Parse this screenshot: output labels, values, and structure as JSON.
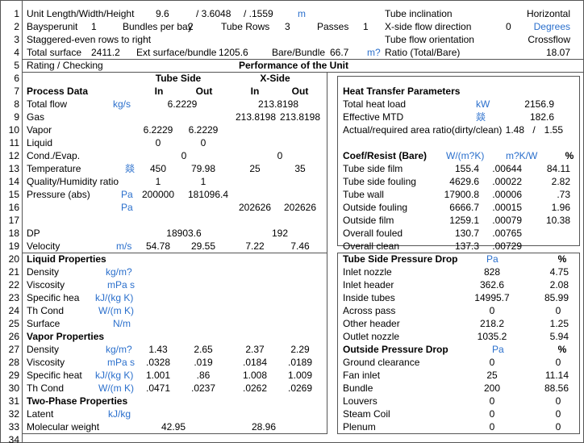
{
  "row_numbers": [
    "1",
    "2",
    "3",
    "4",
    "5",
    "6",
    "7",
    "8",
    "9",
    "10",
    "11",
    "12",
    "13",
    "14",
    "15",
    "16",
    "17",
    "18",
    "19",
    "20",
    "21",
    "22",
    "23",
    "24",
    "25",
    "26",
    "27",
    "28",
    "29",
    "30",
    "31",
    "32",
    "33",
    "34"
  ],
  "rows": [
    [
      "Unit Length/Width/Height",
      "9.6",
      "/ 3.6048",
      "/ .1559",
      "m",
      "Tube inclination",
      "Horizontal"
    ],
    [
      "Baysperunit",
      "1",
      "Bundles per bay",
      "2",
      "Tube Rows",
      "3",
      "Passes",
      "1",
      "X-side flow direction",
      "0",
      "Degrees"
    ],
    [
      "Staggered-even rows to right",
      "Tube flow orientation",
      "Crossflow"
    ],
    [
      "Total surface",
      "2411.2",
      "Ext surface/bundle",
      "1205.6",
      "Bare/Bundle",
      "66.7",
      "m?",
      "Ratio (Total/Bare)",
      "18.07"
    ],
    [
      "Rating / Checking",
      "Performance of the Unit"
    ],
    [
      "Tube Side",
      "X-Side"
    ],
    [
      "Process Data",
      "In",
      "Out",
      "In",
      "Out",
      "Heat Transfer Parameters"
    ],
    [
      "Total flow",
      "kg/s",
      "6.2229",
      "213.8198",
      "Total heat load",
      "kW",
      "2156.9"
    ],
    [
      "Gas",
      "213.8198",
      "213.8198",
      "Effective MTD",
      "燚",
      "182.6"
    ],
    [
      "Vapor",
      "6.2229",
      "6.2229",
      "Actual/required area ratio(dirty/clean)",
      "1.48",
      "/",
      "1.55"
    ],
    [
      "Liquid",
      "0",
      "0"
    ],
    [
      "Cond./Evap.",
      "0",
      "0",
      "Coef/Resist (Bare)",
      "W/(m?K)",
      "m?K/W",
      "%"
    ],
    [
      "Temperature",
      "燚",
      "450",
      "79.98",
      "25",
      "35",
      "Tube side film",
      "155.4",
      ".00644",
      "84.11"
    ],
    [
      "Quality/Humidity ratio",
      "1",
      "1",
      "Tube side fouling",
      "4629.6",
      ".00022",
      "2.82"
    ],
    [
      "Pressure (abs)",
      "Pa",
      "200000",
      "181096.4",
      "Tube wall",
      "17900.8",
      ".00006",
      ".73"
    ],
    [
      "Pa",
      "202626",
      "202626",
      "Outside fouling",
      "6666.7",
      ".00015",
      "1.96"
    ],
    [
      "Outside film",
      "1259.1",
      ".00079",
      "10.38"
    ],
    [
      "DP",
      "18903.6",
      "192",
      "Overall fouled",
      "130.7",
      ".00765"
    ],
    [
      "Velocity",
      "m/s",
      "54.78",
      "29.55",
      "7.22",
      "7.46",
      "Overall clean",
      "137.3",
      ".00729"
    ],
    [
      "Liquid Properties",
      "Tube Side Pressure Drop",
      "Pa",
      "%"
    ],
    [
      "Density",
      "kg/m?",
      "Inlet nozzle",
      "828",
      "4.75"
    ],
    [
      "Viscosity",
      "mPa s",
      "Inlet header",
      "362.6",
      "2.08"
    ],
    [
      "Specific hea",
      "kJ/(kg K)",
      "Inside tubes",
      "14995.7",
      "85.99"
    ],
    [
      "Th Cond",
      "W/(m K)",
      "Across pass",
      "0",
      "0"
    ],
    [
      "Surface",
      "N/m",
      "Other header",
      "218.2",
      "1.25"
    ],
    [
      "Vapor Properties",
      "Outlet nozzle",
      "1035.2",
      "5.94"
    ],
    [
      "Density",
      "kg/m?",
      "1.43",
      "2.65",
      "2.37",
      "2.29",
      "Outside Pressure Drop",
      "Pa",
      "%"
    ],
    [
      "Viscosity",
      "mPa s",
      ".0328",
      ".019",
      ".0184",
      ".0189",
      "Ground clearance",
      "0",
      "0"
    ],
    [
      "Specific heat",
      "kJ/(kg K)",
      "1.001",
      ".86",
      "1.008",
      "1.009",
      "Fan inlet",
      "25",
      "11.14"
    ],
    [
      "Th Cond",
      "W/(m K)",
      ".0471",
      ".0237",
      ".0262",
      ".0269",
      "Bundle",
      "200",
      "88.56"
    ],
    [
      "Two-Phase Properties",
      "Louvers",
      "0",
      "0"
    ],
    [
      "Latent",
      "kJ/kg",
      "Steam Coil",
      "0",
      "0"
    ],
    [
      "Molecular weight",
      "42.95",
      "28.96",
      "Plenum",
      "0",
      "0"
    ],
    []
  ]
}
